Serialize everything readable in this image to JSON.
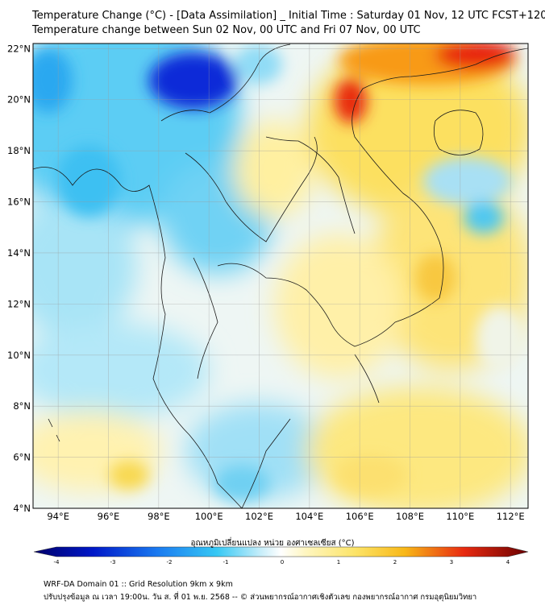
{
  "header": {
    "title_line1": "Temperature Change (°C) - [Data Assimilation] _ Initial Time : Saturday 01 Nov, 12 UTC FCST+120",
    "title_line2": "Temperature change between Sun 02 Nov, 00 UTC and Fri 07 Nov, 00 UTC"
  },
  "map": {
    "lon_ticks": [
      "94°E",
      "96°E",
      "98°E",
      "100°E",
      "102°E",
      "104°E",
      "106°E",
      "108°E",
      "110°E",
      "112°E"
    ],
    "lat_ticks": [
      "22°N",
      "20°N",
      "18°N",
      "16°N",
      "14°N",
      "12°N",
      "10°N",
      "8°N",
      "6°N",
      "4°N"
    ],
    "lon_values": [
      94,
      96,
      98,
      100,
      102,
      104,
      106,
      108,
      110,
      112
    ],
    "lat_values": [
      22,
      20,
      18,
      16,
      14,
      12,
      10,
      8,
      6,
      4
    ],
    "lon_range": [
      93,
      112.7
    ],
    "lat_range": [
      4,
      22.2
    ],
    "gridlines": true,
    "colors": {
      "strong_cooling": "#0022cc",
      "cooling": "#22b8f0",
      "light_cooling": "#a8e4f8",
      "neutral": "#f4f8f8",
      "light_warming": "#fff4b8",
      "warming": "#fcd840",
      "strong_warming": "#e82010"
    }
  },
  "colorbar": {
    "label": "อุณหภูมิเปลี่ยนแปลง หน่วย องศาเซลเซียส (°C)",
    "range": [
      -4,
      4
    ],
    "tick_labels": [
      "-4",
      "-3",
      "-2",
      "-1",
      "0",
      "1",
      "2",
      "3",
      "4"
    ],
    "tick_values": [
      -4,
      -3,
      -2,
      -1,
      0,
      1,
      2,
      3,
      4
    ]
  },
  "footer": {
    "line1": "WRF-DA Domain 01 :: Grid Resolution 9km x 9km",
    "line2": "ปรับปรุงข้อมูล ณ เวลา 19:00น. วัน ส. ที่ 01 พ.ย. 2568 -- © ส่วนพยากรณ์อากาศเชิงตัวเลข กองพยากรณ์อากาศ กรมอุตุนิยมวิทยา"
  }
}
